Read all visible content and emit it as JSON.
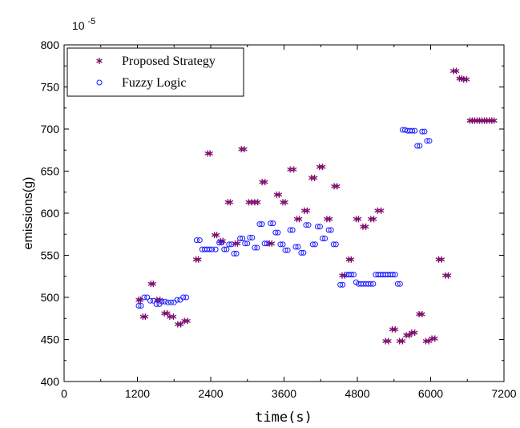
{
  "chart_data": {
    "type": "scatter",
    "xlabel": "time(s)",
    "ylabel": "emissions(g)",
    "y_multiplier": "10",
    "y_multiplier_exp": "-5",
    "xlim": [
      0,
      7200
    ],
    "ylim": [
      400,
      800
    ],
    "xticks": [
      0,
      1200,
      2400,
      3600,
      4800,
      6000,
      7200
    ],
    "yticks": [
      400,
      450,
      500,
      550,
      600,
      650,
      700,
      750,
      800
    ],
    "legend_position": "top-left",
    "grid": false,
    "series": [
      {
        "name": "Proposed Strategy",
        "marker": "asterisk",
        "color": "#7f0e6e",
        "points": [
          [
            1220,
            497
          ],
          [
            1250,
            497
          ],
          [
            1290,
            477
          ],
          [
            1330,
            477
          ],
          [
            1420,
            516
          ],
          [
            1460,
            516
          ],
          [
            1520,
            497
          ],
          [
            1570,
            497
          ],
          [
            1640,
            481
          ],
          [
            1690,
            481
          ],
          [
            1730,
            477
          ],
          [
            1790,
            477
          ],
          [
            1860,
            468
          ],
          [
            1910,
            468
          ],
          [
            1970,
            472
          ],
          [
            2020,
            472
          ],
          [
            2160,
            545
          ],
          [
            2200,
            545
          ],
          [
            2350,
            671
          ],
          [
            2390,
            671
          ],
          [
            2460,
            574
          ],
          [
            2500,
            574
          ],
          [
            2560,
            567
          ],
          [
            2600,
            567
          ],
          [
            2680,
            613
          ],
          [
            2720,
            613
          ],
          [
            2800,
            564
          ],
          [
            2840,
            564
          ],
          [
            2900,
            676
          ],
          [
            2950,
            676
          ],
          [
            3020,
            613
          ],
          [
            3070,
            613
          ],
          [
            3120,
            613
          ],
          [
            3170,
            613
          ],
          [
            3240,
            637
          ],
          [
            3290,
            637
          ],
          [
            3360,
            564
          ],
          [
            3400,
            564
          ],
          [
            3480,
            622
          ],
          [
            3520,
            622
          ],
          [
            3580,
            613
          ],
          [
            3620,
            613
          ],
          [
            3700,
            652
          ],
          [
            3760,
            652
          ],
          [
            3810,
            593
          ],
          [
            3850,
            593
          ],
          [
            3930,
            603
          ],
          [
            3980,
            603
          ],
          [
            4050,
            642
          ],
          [
            4100,
            642
          ],
          [
            4180,
            655
          ],
          [
            4230,
            655
          ],
          [
            4300,
            593
          ],
          [
            4350,
            593
          ],
          [
            4420,
            632
          ],
          [
            4470,
            632
          ],
          [
            4550,
            526
          ],
          [
            4590,
            526
          ],
          [
            4660,
            545
          ],
          [
            4700,
            545
          ],
          [
            4780,
            593
          ],
          [
            4820,
            593
          ],
          [
            4890,
            584
          ],
          [
            4940,
            584
          ],
          [
            5020,
            593
          ],
          [
            5070,
            593
          ],
          [
            5130,
            603
          ],
          [
            5190,
            603
          ],
          [
            5260,
            448
          ],
          [
            5310,
            448
          ],
          [
            5370,
            462
          ],
          [
            5420,
            462
          ],
          [
            5490,
            448
          ],
          [
            5540,
            448
          ],
          [
            5600,
            455
          ],
          [
            5650,
            455
          ],
          [
            5690,
            458
          ],
          [
            5740,
            458
          ],
          [
            5810,
            480
          ],
          [
            5860,
            480
          ],
          [
            5920,
            448
          ],
          [
            5970,
            448
          ],
          [
            6020,
            451
          ],
          [
            6070,
            451
          ],
          [
            6130,
            545
          ],
          [
            6180,
            545
          ],
          [
            6240,
            526
          ],
          [
            6290,
            526
          ],
          [
            6370,
            769
          ],
          [
            6420,
            769
          ],
          [
            6470,
            760
          ],
          [
            6510,
            760
          ],
          [
            6540,
            759
          ],
          [
            6590,
            759
          ],
          [
            6640,
            710
          ],
          [
            6680,
            710
          ],
          [
            6720,
            710
          ],
          [
            6760,
            710
          ],
          [
            6800,
            710
          ],
          [
            6840,
            710
          ],
          [
            6880,
            710
          ],
          [
            6920,
            710
          ],
          [
            6960,
            710
          ],
          [
            7000,
            710
          ],
          [
            7040,
            710
          ]
        ]
      },
      {
        "name": "Fuzzy Logic",
        "marker": "circle",
        "color": "#1a1aff",
        "points": [
          [
            1220,
            490
          ],
          [
            1260,
            490
          ],
          [
            1310,
            500
          ],
          [
            1360,
            500
          ],
          [
            1410,
            496
          ],
          [
            1460,
            496
          ],
          [
            1510,
            492
          ],
          [
            1560,
            492
          ],
          [
            1600,
            495
          ],
          [
            1650,
            495
          ],
          [
            1700,
            494
          ],
          [
            1750,
            494
          ],
          [
            1800,
            494
          ],
          [
            1850,
            497
          ],
          [
            1900,
            497
          ],
          [
            1950,
            500
          ],
          [
            2000,
            500
          ],
          [
            2170,
            568
          ],
          [
            2220,
            568
          ],
          [
            2260,
            557
          ],
          [
            2300,
            557
          ],
          [
            2340,
            557
          ],
          [
            2380,
            557
          ],
          [
            2420,
            557
          ],
          [
            2480,
            557
          ],
          [
            2540,
            565
          ],
          [
            2580,
            565
          ],
          [
            2620,
            557
          ],
          [
            2660,
            557
          ],
          [
            2700,
            563
          ],
          [
            2740,
            563
          ],
          [
            2780,
            552
          ],
          [
            2820,
            552
          ],
          [
            2880,
            570
          ],
          [
            2920,
            570
          ],
          [
            2960,
            564
          ],
          [
            3000,
            564
          ],
          [
            3040,
            571
          ],
          [
            3080,
            571
          ],
          [
            3120,
            559
          ],
          [
            3160,
            559
          ],
          [
            3200,
            587
          ],
          [
            3240,
            587
          ],
          [
            3280,
            564
          ],
          [
            3320,
            564
          ],
          [
            3380,
            588
          ],
          [
            3420,
            588
          ],
          [
            3460,
            577
          ],
          [
            3500,
            577
          ],
          [
            3540,
            563
          ],
          [
            3580,
            563
          ],
          [
            3620,
            556
          ],
          [
            3660,
            556
          ],
          [
            3700,
            580
          ],
          [
            3740,
            580
          ],
          [
            3790,
            560
          ],
          [
            3830,
            560
          ],
          [
            3880,
            553
          ],
          [
            3920,
            553
          ],
          [
            3960,
            586
          ],
          [
            4000,
            586
          ],
          [
            4070,
            563
          ],
          [
            4110,
            563
          ],
          [
            4150,
            584
          ],
          [
            4190,
            584
          ],
          [
            4230,
            570
          ],
          [
            4270,
            570
          ],
          [
            4330,
            580
          ],
          [
            4370,
            580
          ],
          [
            4410,
            563
          ],
          [
            4450,
            563
          ],
          [
            4520,
            515
          ],
          [
            4560,
            515
          ],
          [
            4620,
            527
          ],
          [
            4660,
            527
          ],
          [
            4700,
            527
          ],
          [
            4740,
            527
          ],
          [
            4780,
            518
          ],
          [
            4820,
            516
          ],
          [
            4860,
            516
          ],
          [
            4900,
            516
          ],
          [
            4940,
            516
          ],
          [
            4980,
            516
          ],
          [
            5020,
            516
          ],
          [
            5060,
            516
          ],
          [
            5100,
            527
          ],
          [
            5140,
            527
          ],
          [
            5180,
            527
          ],
          [
            5220,
            527
          ],
          [
            5260,
            527
          ],
          [
            5300,
            527
          ],
          [
            5340,
            527
          ],
          [
            5380,
            527
          ],
          [
            5420,
            527
          ],
          [
            5460,
            516
          ],
          [
            5500,
            516
          ],
          [
            5540,
            699
          ],
          [
            5580,
            699
          ],
          [
            5620,
            698
          ],
          [
            5660,
            698
          ],
          [
            5700,
            698
          ],
          [
            5740,
            698
          ],
          [
            5780,
            680
          ],
          [
            5820,
            680
          ],
          [
            5860,
            697
          ],
          [
            5900,
            697
          ],
          [
            5940,
            686
          ],
          [
            5980,
            686
          ]
        ]
      }
    ]
  }
}
